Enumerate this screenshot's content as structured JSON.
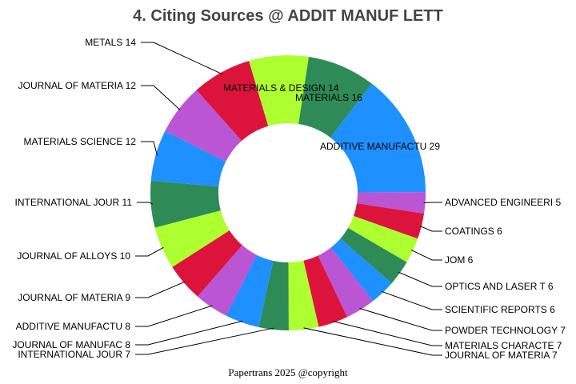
{
  "chart_data": {
    "type": "pie",
    "donut": true,
    "title": "4. Citing Sources @ ADDIT MANUF LETT",
    "footer": "Papertrans 2025 @copyright",
    "slices": [
      {
        "label": "ADDITIVE MANUFACTU",
        "value": 29,
        "color": "#1E90FF"
      },
      {
        "label": "ADVANCED ENGINEERI",
        "value": 5,
        "color": "#BA55D3"
      },
      {
        "label": "COATINGS",
        "value": 6,
        "color": "#DC143C"
      },
      {
        "label": "JOM",
        "value": 6,
        "color": "#ADFF2F"
      },
      {
        "label": "OPTICS AND LASER T",
        "value": 6,
        "color": "#2E8B57"
      },
      {
        "label": "SCIENTIFIC REPORTS",
        "value": 6,
        "color": "#1E90FF"
      },
      {
        "label": "POWDER TECHNOLOGY",
        "value": 7,
        "color": "#BA55D3"
      },
      {
        "label": "MATERIALS CHARACTE",
        "value": 7,
        "color": "#DC143C"
      },
      {
        "label": "JOURNAL OF MATERIA",
        "value": 7,
        "color": "#ADFF2F"
      },
      {
        "label": "INTERNATIONAL JOUR",
        "value": 7,
        "color": "#2E8B57"
      },
      {
        "label": "JOURNAL OF MANUFAC",
        "value": 8,
        "color": "#1E90FF"
      },
      {
        "label": "ADDITIVE MANUFACTU",
        "value": 8,
        "color": "#BA55D3"
      },
      {
        "label": "JOURNAL OF MATERIA",
        "value": 9,
        "color": "#DC143C"
      },
      {
        "label": "JOURNAL OF ALLOYS ",
        "value": 10,
        "color": "#ADFF2F"
      },
      {
        "label": "INTERNATIONAL JOUR",
        "value": 11,
        "color": "#2E8B57"
      },
      {
        "label": "MATERIALS SCIENCE ",
        "value": 12,
        "color": "#1E90FF"
      },
      {
        "label": "JOURNAL OF MATERIA",
        "value": 12,
        "color": "#BA55D3"
      },
      {
        "label": "METALS",
        "value": 14,
        "color": "#DC143C"
      },
      {
        "label": "MATERIALS & DESIGN",
        "value": 14,
        "color": "#ADFF2F"
      },
      {
        "label": "MATERIALS",
        "value": 16,
        "color": "#2E8B57"
      }
    ]
  }
}
